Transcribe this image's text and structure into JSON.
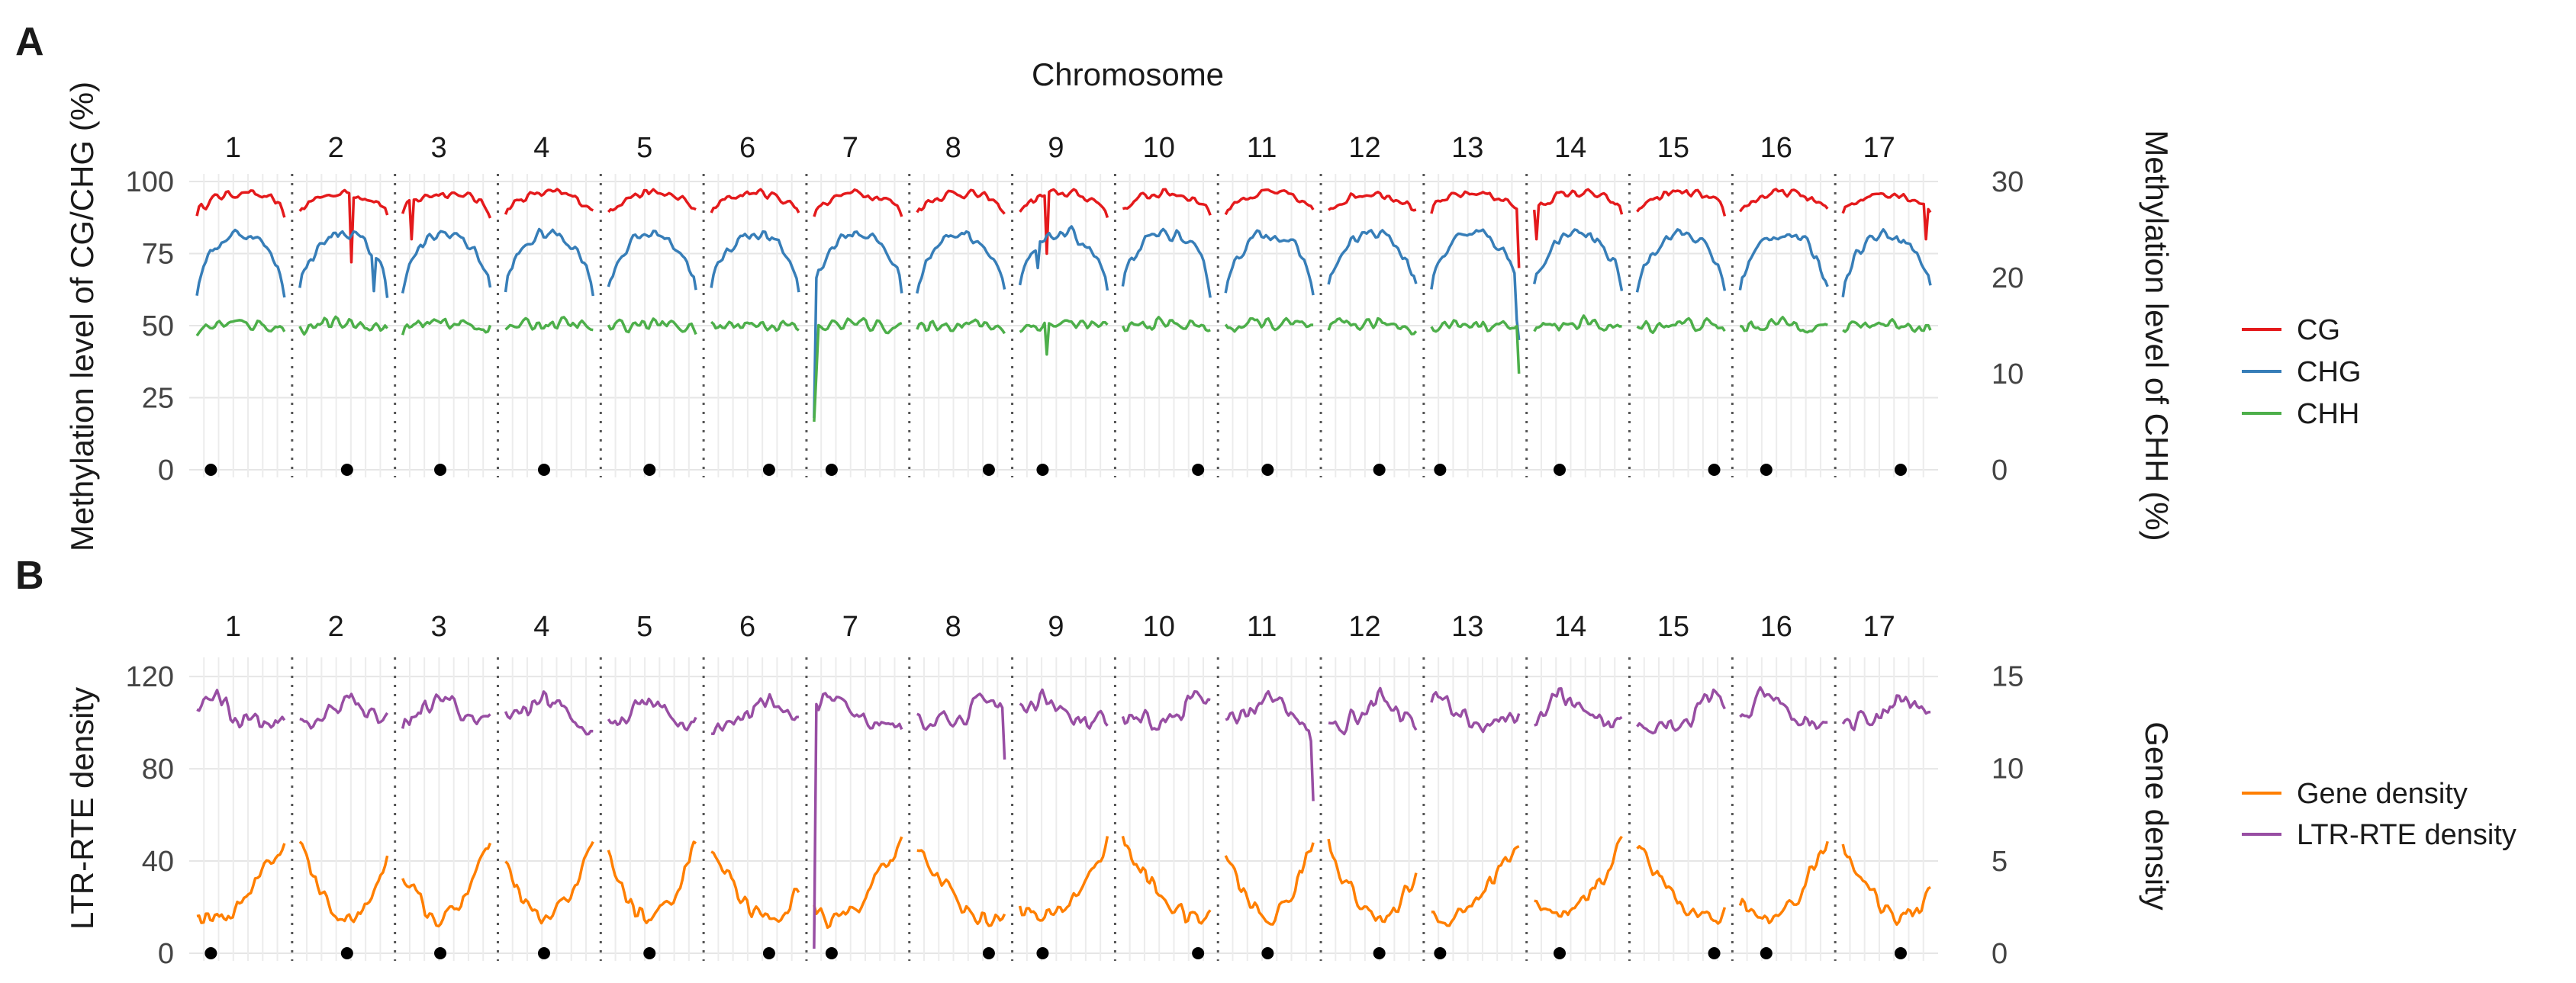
{
  "chart_data": [
    {
      "panel": "A",
      "type": "line",
      "title": "Chromosome",
      "x_label": "Chromosome",
      "chromosomes": [
        "1",
        "2",
        "3",
        "4",
        "5",
        "6",
        "7",
        "8",
        "9",
        "10",
        "11",
        "12",
        "13",
        "14",
        "15",
        "16",
        "17"
      ],
      "ylabel": "Methylation level of CG/CHG (%)",
      "ylim": [
        0,
        100
      ],
      "yticks": [
        "0",
        "25",
        "50",
        "75",
        "100"
      ],
      "y2label": "Methylation level of CHH (%)",
      "y2lim": [
        0,
        30
      ],
      "y2ticks": [
        "0",
        "10",
        "20",
        "30"
      ],
      "legend_position": "right",
      "series": [
        {
          "name": "CG",
          "axis": "left",
          "color": "#e41a1c",
          "profile": "per-chromosome U-shape: ~88-90% at chromosome ends rising to ~95-97% in arms; sharp dips near 70-80% at chr2, chr3, chr9, chr13, chr14, chr17"
        },
        {
          "name": "CHG",
          "axis": "left",
          "color": "#377eb8",
          "profile": "per-chromosome arch: ~60-65% at ends rising to ~80-83%; chr7 begins at ~18% and chr13 ends near 45%"
        },
        {
          "name": "CHH",
          "axis": "right",
          "color": "#4daf4a",
          "profile": "flat at ~14-15% with small noise; drops to ~5% at start of chr7 and ~10% at end of chr13"
        }
      ],
      "centromere_markers": [
        {
          "chromosome": "1",
          "pos": 0.16
        },
        {
          "chromosome": "2",
          "pos": 0.54
        },
        {
          "chromosome": "3",
          "pos": 0.43
        },
        {
          "chromosome": "4",
          "pos": 0.44
        },
        {
          "chromosome": "5",
          "pos": 0.47
        },
        {
          "chromosome": "6",
          "pos": 0.66
        },
        {
          "chromosome": "7",
          "pos": 0.2
        },
        {
          "chromosome": "8",
          "pos": 0.82
        },
        {
          "chromosome": "9",
          "pos": 0.26
        },
        {
          "chromosome": "10",
          "pos": 0.86
        },
        {
          "chromosome": "11",
          "pos": 0.48
        },
        {
          "chromosome": "12",
          "pos": 0.58
        },
        {
          "chromosome": "13",
          "pos": 0.1
        },
        {
          "chromosome": "14",
          "pos": 0.29
        },
        {
          "chromosome": "15",
          "pos": 0.88
        },
        {
          "chromosome": "16",
          "pos": 0.3
        },
        {
          "chromosome": "17",
          "pos": 0.66
        }
      ]
    },
    {
      "panel": "B",
      "type": "line",
      "chromosomes": [
        "1",
        "2",
        "3",
        "4",
        "5",
        "6",
        "7",
        "8",
        "9",
        "10",
        "11",
        "12",
        "13",
        "14",
        "15",
        "16",
        "17"
      ],
      "ylabel": "LTR-RTE density",
      "ylim": [
        0,
        125
      ],
      "yticks": [
        "0",
        "40",
        "80",
        "120"
      ],
      "y2label": "Gene density",
      "y2lim": [
        0,
        15.6
      ],
      "y2ticks": [
        "0",
        "5",
        "10",
        "15"
      ],
      "legend_position": "right",
      "series": [
        {
          "name": "Gene density",
          "axis": "right",
          "color": "#ff7f00",
          "profile": "U-shape per chromosome: ~4-7 at chromosome ends, ~1.5-2.5 in centromeric region"
        },
        {
          "name": "LTR-RTE density",
          "axis": "left",
          "color": "#984ea3",
          "profile": "~95-120 per chromosome, higher near centromere; chr7 starts near 0 then jumps to ~110; sharp drops to ~85 at end of chr8 and ~65 at end of chr11"
        }
      ],
      "centromere_markers": [
        {
          "chromosome": "1",
          "pos": 0.16
        },
        {
          "chromosome": "2",
          "pos": 0.54
        },
        {
          "chromosome": "3",
          "pos": 0.43
        },
        {
          "chromosome": "4",
          "pos": 0.44
        },
        {
          "chromosome": "5",
          "pos": 0.47
        },
        {
          "chromosome": "6",
          "pos": 0.66
        },
        {
          "chromosome": "7",
          "pos": 0.2
        },
        {
          "chromosome": "8",
          "pos": 0.82
        },
        {
          "chromosome": "9",
          "pos": 0.26
        },
        {
          "chromosome": "10",
          "pos": 0.86
        },
        {
          "chromosome": "11",
          "pos": 0.48
        },
        {
          "chromosome": "12",
          "pos": 0.58
        },
        {
          "chromosome": "13",
          "pos": 0.1
        },
        {
          "chromosome": "14",
          "pos": 0.29
        },
        {
          "chromosome": "15",
          "pos": 0.88
        },
        {
          "chromosome": "16",
          "pos": 0.3
        },
        {
          "chromosome": "17",
          "pos": 0.66
        }
      ]
    }
  ]
}
